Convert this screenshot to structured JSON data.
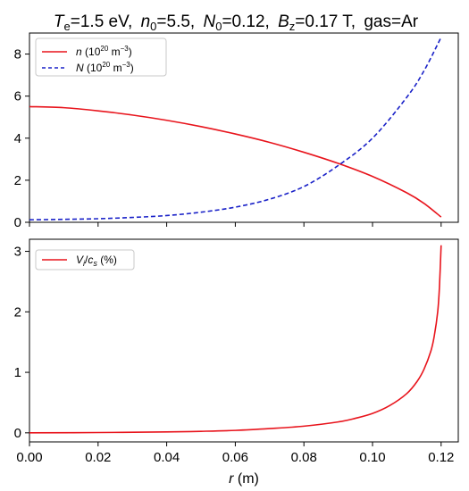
{
  "figure_title": {
    "te_sym": "T",
    "te_sub": "e",
    "te_val": "=1.5 eV,",
    "n0_sym": "n",
    "n0_sub": "0",
    "n0_val": "=5.5,",
    "N0_sym": "N",
    "N0_sub": "0",
    "N0_val": "=0.12,",
    "bz_sym": "B",
    "bz_sub": "z",
    "bz_val": "=0.17 T,",
    "gas": "gas=Ar"
  },
  "x_axis": {
    "label_sym": "r",
    "label_unit": " (m)",
    "ticks": [
      "0.00",
      "0.02",
      "0.04",
      "0.06",
      "0.08",
      "0.10",
      "0.12"
    ]
  },
  "colors": {
    "n": "#e8141c",
    "N": "#1a22c8",
    "V": "#e8141c"
  },
  "chart_data": [
    {
      "type": "line",
      "xlabel": "r (m)",
      "xlim": [
        0.0,
        0.125
      ],
      "ylim": [
        0,
        9
      ],
      "yticks": [
        "0",
        "2",
        "4",
        "6",
        "8"
      ],
      "grid": false,
      "legend_position": "top-left",
      "legend": {
        "n_sym": "n",
        "n_rest": " (10",
        "n_exp": "20",
        "n_unit": " m",
        "n_uexp": "−3",
        "n_close": ")",
        "N_sym": "N",
        "N_rest": " (10",
        "N_exp": "20",
        "N_unit": " m",
        "N_uexp": "−3",
        "N_close": ")"
      },
      "series": [
        {
          "name": "n (10^20 m^-3)",
          "style": "solid",
          "x": [
            0.0,
            0.01,
            0.02,
            0.03,
            0.04,
            0.05,
            0.06,
            0.07,
            0.08,
            0.09,
            0.1,
            0.11,
            0.115,
            0.12
          ],
          "y": [
            5.5,
            5.45,
            5.3,
            5.1,
            4.85,
            4.55,
            4.2,
            3.8,
            3.33,
            2.8,
            2.18,
            1.4,
            0.9,
            0.25
          ]
        },
        {
          "name": "N (10^20 m^-3)",
          "style": "dashed",
          "x": [
            0.0,
            0.01,
            0.02,
            0.03,
            0.04,
            0.05,
            0.06,
            0.07,
            0.08,
            0.09,
            0.1,
            0.11,
            0.115,
            0.12
          ],
          "y": [
            0.12,
            0.14,
            0.17,
            0.23,
            0.32,
            0.48,
            0.72,
            1.1,
            1.7,
            2.7,
            4.0,
            5.95,
            7.2,
            8.8
          ]
        }
      ]
    },
    {
      "type": "line",
      "xlabel": "r (m)",
      "xlim": [
        0.0,
        0.125
      ],
      "ylim": [
        -0.15,
        3.2
      ],
      "yticks": [
        "0",
        "1",
        "2",
        "3"
      ],
      "grid": false,
      "legend_position": "top-left",
      "legend": {
        "v_sym": "V",
        "v_sub": "i",
        "v_slash": "/",
        "c_sym": "c",
        "c_sub": "s",
        "pct": " (%)"
      },
      "series": [
        {
          "name": "Vi/cs (%)",
          "style": "solid",
          "x": [
            0.0,
            0.02,
            0.04,
            0.05,
            0.06,
            0.07,
            0.08,
            0.09,
            0.095,
            0.1,
            0.105,
            0.11,
            0.113,
            0.115,
            0.117,
            0.118,
            0.119,
            0.1195,
            0.12
          ],
          "y": [
            0.0,
            0.005,
            0.015,
            0.025,
            0.04,
            0.07,
            0.11,
            0.18,
            0.24,
            0.32,
            0.45,
            0.65,
            0.85,
            1.05,
            1.35,
            1.6,
            2.0,
            2.4,
            3.1
          ]
        }
      ]
    }
  ]
}
